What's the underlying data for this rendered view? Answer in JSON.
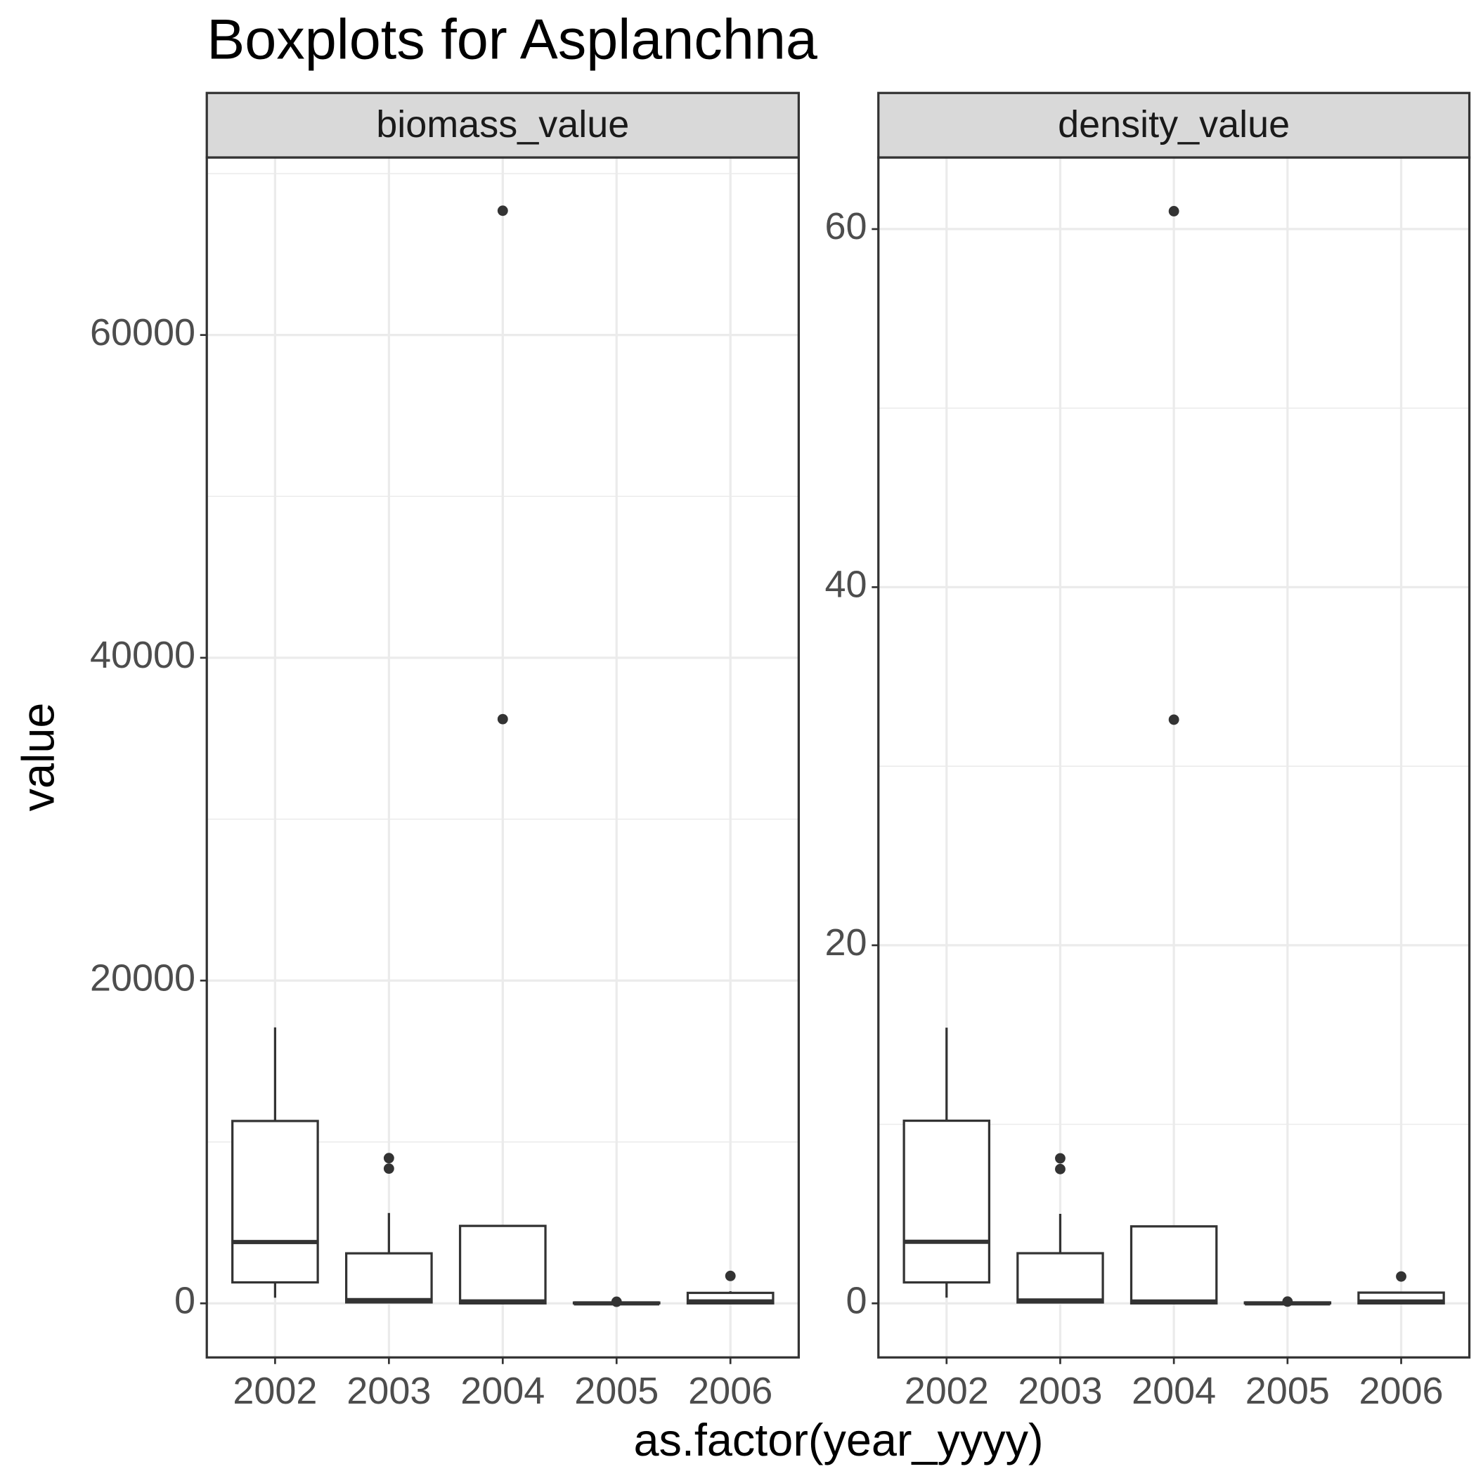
{
  "title": "Boxplots for Asplanchna",
  "x_label": "as.factor(year_yyyy)",
  "y_label": "value",
  "chart_data": [
    {
      "type": "box",
      "panel_title": "biomass_value",
      "categories": [
        "2002",
        "2003",
        "2004",
        "2005",
        "2006"
      ],
      "boxes": [
        {
          "min": 350,
          "q1": 1300,
          "median": 3800,
          "q3": 11300,
          "max": 17100,
          "outliers": []
        },
        {
          "min": 0,
          "q1": 60,
          "median": 200,
          "q3": 3100,
          "max": 5600,
          "outliers": [
            9000,
            8350
          ]
        },
        {
          "min": 0,
          "q1": 0,
          "median": 120,
          "q3": 4800,
          "max": 4800,
          "outliers": [
            67700,
            36200
          ]
        },
        {
          "min": 0,
          "q1": 0,
          "median": 0,
          "q3": 50,
          "max": 50,
          "outliers": [
            100
          ]
        },
        {
          "min": 0,
          "q1": 0,
          "median": 120,
          "q3": 650,
          "max": 750,
          "outliers": [
            1700
          ]
        }
      ],
      "ylim": [
        -3350,
        71000
      ],
      "yticks": [
        0,
        20000,
        40000,
        60000
      ],
      "grid": true,
      "minor_grid": true,
      "color": "#333333"
    },
    {
      "type": "box",
      "panel_title": "density_value",
      "categories": [
        "2002",
        "2003",
        "2004",
        "2005",
        "2006"
      ],
      "boxes": [
        {
          "min": 0.32,
          "q1": 1.17,
          "median": 3.44,
          "q3": 10.2,
          "max": 15.4,
          "outliers": []
        },
        {
          "min": 0,
          "q1": 0.05,
          "median": 0.16,
          "q3": 2.8,
          "max": 5.0,
          "outliers": [
            8.1,
            7.5
          ]
        },
        {
          "min": 0,
          "q1": 0,
          "median": 0.1,
          "q3": 4.3,
          "max": 4.3,
          "outliers": [
            61.0,
            32.6
          ]
        },
        {
          "min": 0,
          "q1": 0,
          "median": 0,
          "q3": 0.05,
          "max": 0.05,
          "outliers": [
            0.1
          ]
        },
        {
          "min": 0,
          "q1": 0,
          "median": 0.1,
          "q3": 0.6,
          "max": 0.65,
          "outliers": [
            1.5
          ]
        }
      ],
      "ylim": [
        -3.02,
        64
      ],
      "yticks": [
        0,
        20,
        40,
        60
      ],
      "grid": true,
      "minor_grid": true,
      "color": "#333333"
    }
  ]
}
